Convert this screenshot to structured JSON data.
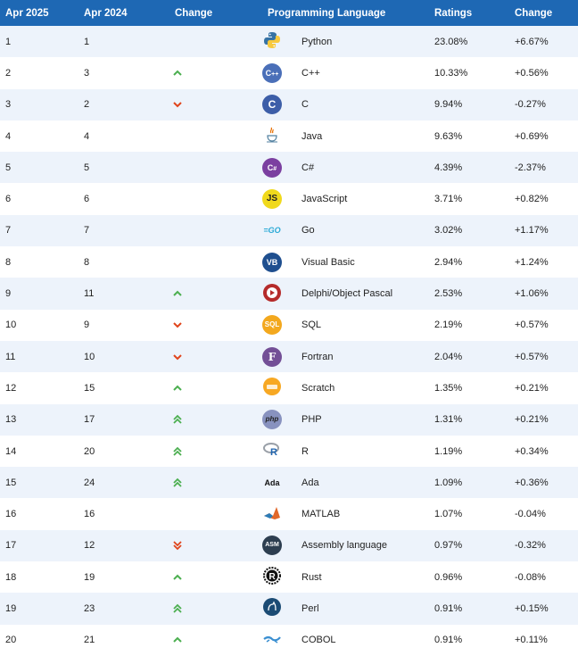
{
  "headers": {
    "apr2025": "Apr 2025",
    "apr2024": "Apr 2024",
    "change_trend": "Change",
    "language": "Programming Language",
    "ratings": "Ratings",
    "change": "Change"
  },
  "colors": {
    "header_bg": "#1e68b4",
    "row_alt": "#edf3fb",
    "up": "#4caf50",
    "down": "#e0441b"
  },
  "rows": [
    {
      "rank_2025": "1",
      "rank_2024": "1",
      "trend": "none",
      "icon": "python-logo-icon",
      "language": "Python",
      "rating": "23.08%",
      "change": "+6.67%"
    },
    {
      "rank_2025": "2",
      "rank_2024": "3",
      "trend": "up",
      "icon": "cpp-logo-icon",
      "language": "C++",
      "rating": "10.33%",
      "change": "+0.56%"
    },
    {
      "rank_2025": "3",
      "rank_2024": "2",
      "trend": "down",
      "icon": "c-logo-icon",
      "language": "C",
      "rating": "9.94%",
      "change": "-0.27%"
    },
    {
      "rank_2025": "4",
      "rank_2024": "4",
      "trend": "none",
      "icon": "java-logo-icon",
      "language": "Java",
      "rating": "9.63%",
      "change": "+0.69%"
    },
    {
      "rank_2025": "5",
      "rank_2024": "5",
      "trend": "none",
      "icon": "csharp-logo-icon",
      "language": "C#",
      "rating": "4.39%",
      "change": "-2.37%"
    },
    {
      "rank_2025": "6",
      "rank_2024": "6",
      "trend": "none",
      "icon": "javascript-logo-icon",
      "language": "JavaScript",
      "rating": "3.71%",
      "change": "+0.82%"
    },
    {
      "rank_2025": "7",
      "rank_2024": "7",
      "trend": "none",
      "icon": "go-logo-icon",
      "language": "Go",
      "rating": "3.02%",
      "change": "+1.17%"
    },
    {
      "rank_2025": "8",
      "rank_2024": "8",
      "trend": "none",
      "icon": "visual-basic-logo-icon",
      "language": "Visual Basic",
      "rating": "2.94%",
      "change": "+1.24%"
    },
    {
      "rank_2025": "9",
      "rank_2024": "11",
      "trend": "up",
      "icon": "delphi-logo-icon",
      "language": "Delphi/Object Pascal",
      "rating": "2.53%",
      "change": "+1.06%"
    },
    {
      "rank_2025": "10",
      "rank_2024": "9",
      "trend": "down",
      "icon": "sql-logo-icon",
      "language": "SQL",
      "rating": "2.19%",
      "change": "+0.57%"
    },
    {
      "rank_2025": "11",
      "rank_2024": "10",
      "trend": "down",
      "icon": "fortran-logo-icon",
      "language": "Fortran",
      "rating": "2.04%",
      "change": "+0.57%"
    },
    {
      "rank_2025": "12",
      "rank_2024": "15",
      "trend": "up",
      "icon": "scratch-logo-icon",
      "language": "Scratch",
      "rating": "1.35%",
      "change": "+0.21%"
    },
    {
      "rank_2025": "13",
      "rank_2024": "17",
      "trend": "up2",
      "icon": "php-logo-icon",
      "language": "PHP",
      "rating": "1.31%",
      "change": "+0.21%"
    },
    {
      "rank_2025": "14",
      "rank_2024": "20",
      "trend": "up2",
      "icon": "r-logo-icon",
      "language": "R",
      "rating": "1.19%",
      "change": "+0.34%"
    },
    {
      "rank_2025": "15",
      "rank_2024": "24",
      "trend": "up2",
      "icon": "ada-logo-icon",
      "language": "Ada",
      "rating": "1.09%",
      "change": "+0.36%"
    },
    {
      "rank_2025": "16",
      "rank_2024": "16",
      "trend": "none",
      "icon": "matlab-logo-icon",
      "language": "MATLAB",
      "rating": "1.07%",
      "change": "-0.04%"
    },
    {
      "rank_2025": "17",
      "rank_2024": "12",
      "trend": "down2",
      "icon": "assembly-logo-icon",
      "language": "Assembly language",
      "rating": "0.97%",
      "change": "-0.32%"
    },
    {
      "rank_2025": "18",
      "rank_2024": "19",
      "trend": "up",
      "icon": "rust-logo-icon",
      "language": "Rust",
      "rating": "0.96%",
      "change": "-0.08%"
    },
    {
      "rank_2025": "19",
      "rank_2024": "23",
      "trend": "up2",
      "icon": "perl-logo-icon",
      "language": "Perl",
      "rating": "0.91%",
      "change": "+0.15%"
    },
    {
      "rank_2025": "20",
      "rank_2024": "21",
      "trend": "up",
      "icon": "cobol-logo-icon",
      "language": "COBOL",
      "rating": "0.91%",
      "change": "+0.11%"
    }
  ]
}
